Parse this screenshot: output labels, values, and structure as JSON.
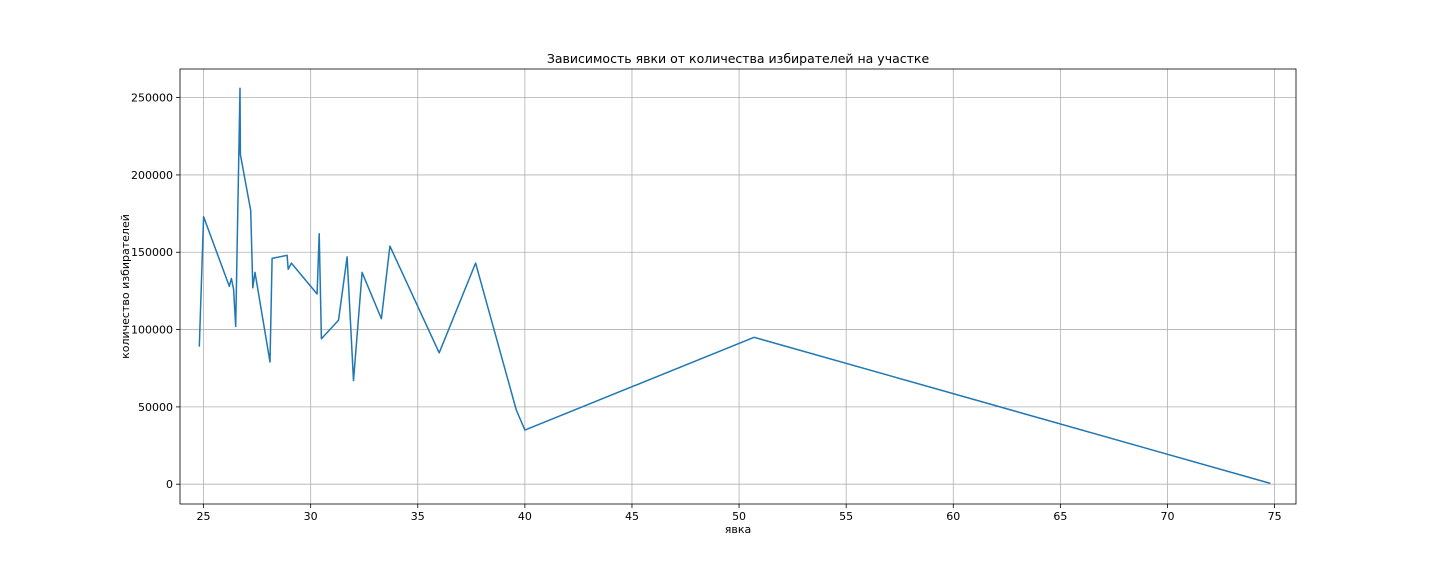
{
  "chart_data": {
    "type": "line",
    "title": "Зависимость явки от количества избирателей на участке",
    "xlabel": "явка",
    "ylabel": "количество избирателей",
    "xlim": [
      23.9,
      76.0
    ],
    "ylim": [
      -12800,
      268500
    ],
    "xticks": [
      25,
      30,
      35,
      40,
      45,
      50,
      55,
      60,
      65,
      70,
      75
    ],
    "yticks": [
      0,
      50000,
      100000,
      150000,
      200000,
      250000
    ],
    "grid": true,
    "line_color": "#1f77b4",
    "series": [
      {
        "x": [
          24.8,
          25.0,
          26.2,
          26.3,
          26.4,
          26.5,
          26.7,
          26.72,
          26.75,
          27.2,
          27.3,
          27.4,
          28.1,
          28.2,
          28.9,
          28.95,
          29.1,
          30.3,
          30.4,
          30.5,
          31.3,
          31.7,
          32.0,
          32.4,
          33.3,
          33.7,
          36.0,
          37.7,
          39.6,
          40.0,
          50.7,
          74.8
        ],
        "y": [
          89000,
          173000,
          128000,
          133000,
          126000,
          102000,
          256000,
          213000,
          211000,
          177000,
          127000,
          137000,
          79000,
          146000,
          148000,
          139000,
          143000,
          123000,
          162000,
          94000,
          106000,
          147000,
          67000,
          137000,
          107000,
          154000,
          85000,
          143000,
          48000,
          35000,
          95000,
          500
        ]
      }
    ]
  }
}
